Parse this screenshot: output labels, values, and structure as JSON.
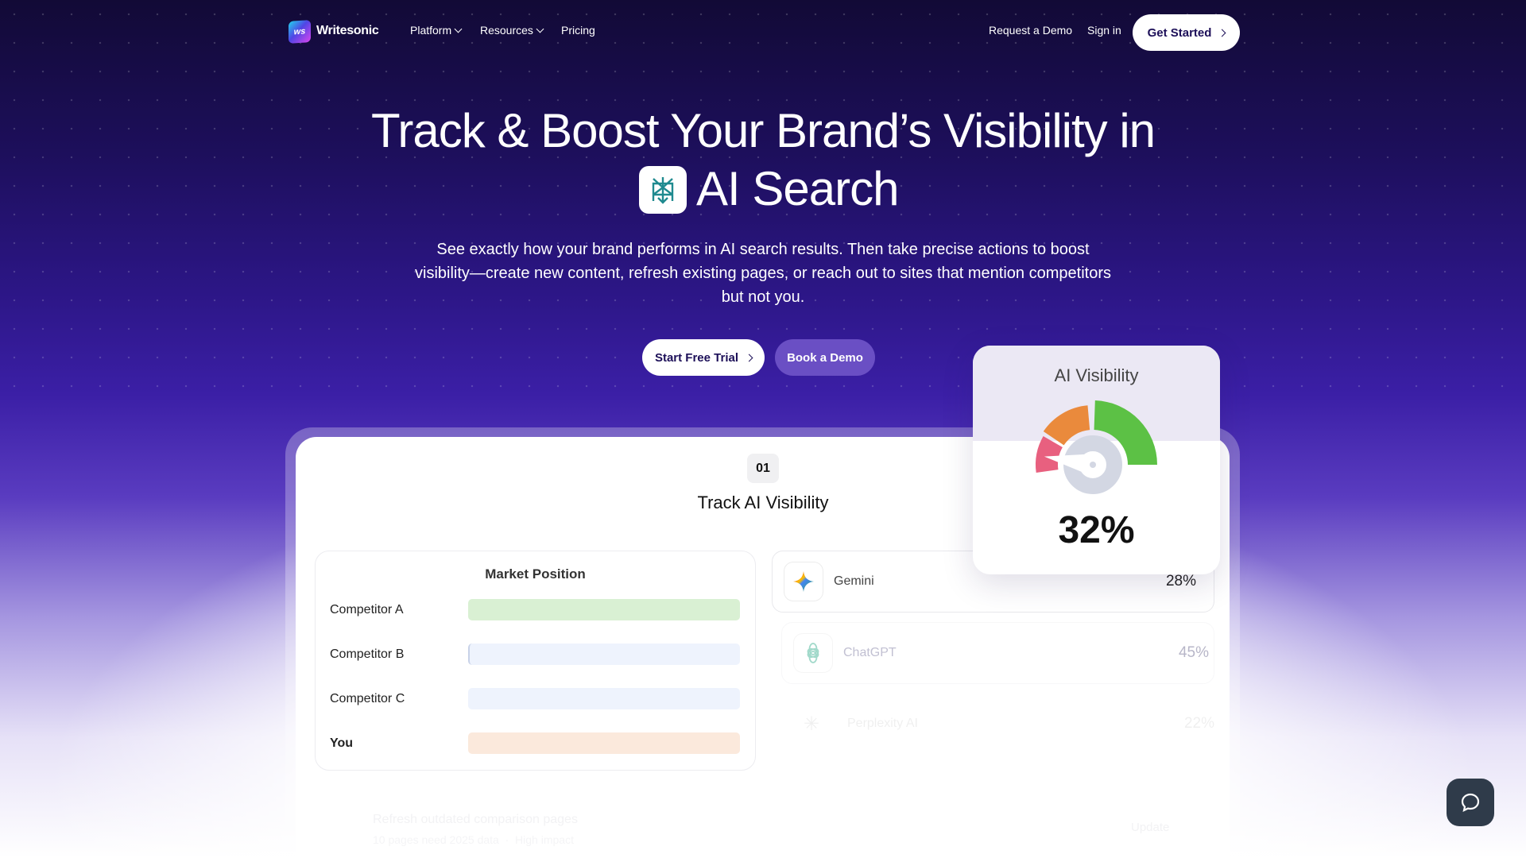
{
  "nav": {
    "brand": "Writesonic",
    "logo_text": "ws",
    "items": [
      {
        "label": "Platform",
        "dropdown": true
      },
      {
        "label": "Resources",
        "dropdown": true
      },
      {
        "label": "Pricing",
        "dropdown": false
      }
    ],
    "request_demo": "Request a Demo",
    "sign_in": "Sign in",
    "get_started": "Get Started"
  },
  "hero": {
    "title_line1": "Track & Boost Your Brand’s Visibility in",
    "title_line2": "AI Search",
    "title_icon": "perplexity-icon",
    "subtitle_lines": [
      "See exactly how your brand performs in AI search results. Then take precise actions to boost",
      "visibility—create new content, refresh existing pages, or reach out to sites that mention competitors",
      "but not you."
    ],
    "cta_primary": "Start Free Trial",
    "cta_secondary": "Book a Demo"
  },
  "feature": {
    "step": "01",
    "title": "Track AI Visibility",
    "market_position": {
      "title": "Market Position",
      "rows": [
        {
          "label": "Competitor A",
          "color": "#d9f0d3"
        },
        {
          "label": "Competitor B",
          "color": "#eef3fd"
        },
        {
          "label": "Competitor C",
          "color": "#eef3fd"
        },
        {
          "label": "You",
          "color": "#fbe9dc"
        }
      ]
    },
    "platforms": [
      {
        "name": "Gemini",
        "value": "28%",
        "icon": "gemini-icon"
      },
      {
        "name": "ChatGPT",
        "value": "45%",
        "icon": "chatgpt-icon"
      },
      {
        "name": "Perplexity AI",
        "value": "22%",
        "icon": "perplexity-icon"
      }
    ],
    "task": {
      "title": "Refresh outdated comparison pages",
      "meta": "10 pages need 2025 data",
      "separator": "·",
      "impact": "High impact",
      "action": "Update"
    }
  },
  "visibility_card": {
    "title": "AI Visibility",
    "value": "32%",
    "gauge_percent": 32,
    "colors": {
      "low": "#e8607f",
      "mid": "#ea8a3c",
      "high": "#5cc145",
      "hub": "#d3d7e3"
    }
  },
  "colors": {
    "brand_dark": "#1c0f58",
    "accent": "#3b1fa6",
    "chat_button": "#2f3b4a"
  }
}
